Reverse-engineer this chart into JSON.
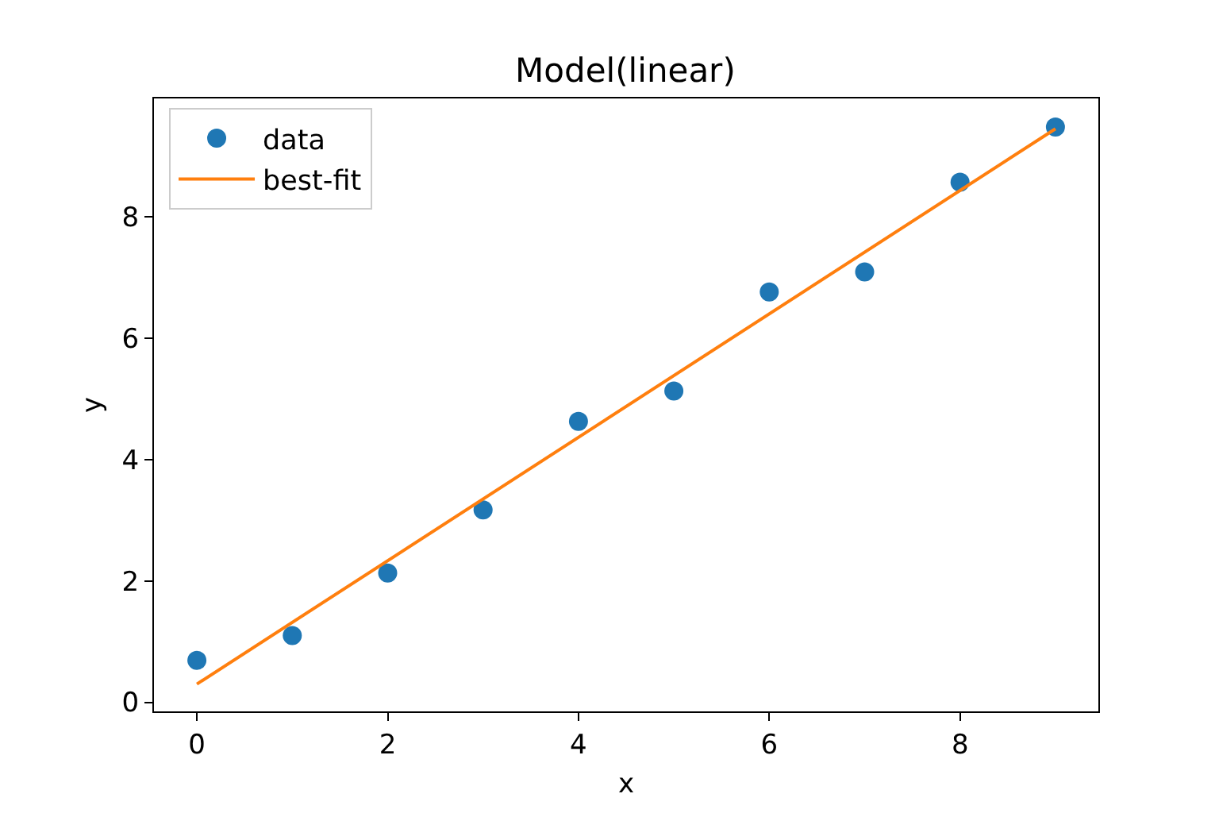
{
  "chart_data": {
    "type": "scatter",
    "title": "Model(linear)",
    "xlabel": "x",
    "ylabel": "y",
    "series": [
      {
        "name": "data",
        "color": "#1f77b4",
        "marker": "circle",
        "x": [
          0,
          1,
          2,
          3,
          4,
          5,
          6,
          7,
          8,
          9
        ],
        "values": [
          0.69,
          1.1,
          2.13,
          3.17,
          4.63,
          5.13,
          6.76,
          7.09,
          8.57,
          9.48
        ]
      },
      {
        "name": "best-fit",
        "type": "line",
        "color": "#ff7f0e",
        "marker": "none",
        "line_style": "solid",
        "x": [
          0,
          9
        ],
        "values": [
          0.3,
          9.45
        ]
      }
    ],
    "xlim": [
      -0.45,
      9.45
    ],
    "xticks": [
      0,
      2,
      4,
      6,
      8
    ],
    "ylim": [
      -0.15,
      9.95
    ],
    "yticks": [
      0,
      2,
      4,
      6,
      8
    ],
    "legend": "top left"
  }
}
